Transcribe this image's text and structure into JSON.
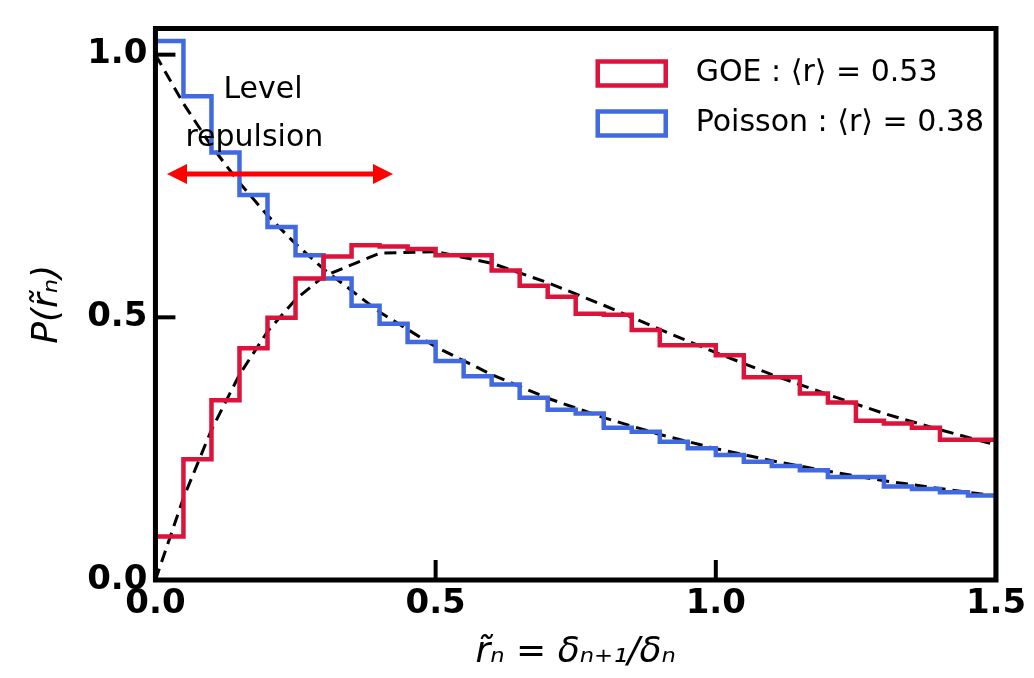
{
  "chart_data": {
    "type": "histogram",
    "xlabel": "r̃ₙ = δₙ₊₁/δₙ",
    "ylabel": "P(r̃ₙ)",
    "bins": [
      0,
      0.05,
      0.1,
      0.15,
      0.2,
      0.25,
      0.3,
      0.35,
      0.4,
      0.45,
      0.5,
      0.55,
      0.6,
      0.65,
      0.7,
      0.75,
      0.8,
      0.85,
      0.9,
      0.95,
      1.0,
      1.05,
      1.1,
      1.15,
      1.2,
      1.25,
      1.3,
      1.35,
      1.4,
      1.45,
      1.5
    ],
    "series": [
      {
        "name": "GOE : ⟨r⟩ = 0.53",
        "color": "#dc143c",
        "values": [
          0.083,
          0.23,
          0.342,
          0.441,
          0.499,
          0.574,
          0.616,
          0.637,
          0.635,
          0.63,
          0.618,
          0.618,
          0.589,
          0.56,
          0.539,
          0.507,
          0.505,
          0.476,
          0.447,
          0.447,
          0.428,
          0.386,
          0.386,
          0.355,
          0.338,
          0.303,
          0.298,
          0.29,
          0.267,
          0.267
        ]
      },
      {
        "name": "Poisson : ⟨r⟩ = 0.38",
        "color": "#4169e1",
        "values": [
          1.026,
          0.921,
          0.814,
          0.733,
          0.672,
          0.618,
          0.574,
          0.522,
          0.488,
          0.453,
          0.417,
          0.388,
          0.372,
          0.347,
          0.324,
          0.317,
          0.29,
          0.282,
          0.263,
          0.251,
          0.238,
          0.225,
          0.217,
          0.209,
          0.196,
          0.196,
          0.178,
          0.173,
          0.167,
          0.161
        ]
      },
      {
        "type": "line",
        "color": "#000000",
        "line_style": "dashed",
        "x": [
          0,
          0.05,
          0.1,
          0.15,
          0.2,
          0.25,
          0.3,
          0.4,
          0.5,
          0.6,
          0.7,
          0.8,
          0.9,
          1.0,
          1.1,
          1.2,
          1.3,
          1.4,
          1.5
        ],
        "values": [
          0,
          0.156,
          0.286,
          0.391,
          0.473,
          0.534,
          0.578,
          0.622,
          0.625,
          0.603,
          0.566,
          0.523,
          0.477,
          0.433,
          0.391,
          0.353,
          0.317,
          0.286,
          0.257
        ]
      },
      {
        "type": "line",
        "color": "#000000",
        "line_style": "dashed",
        "x": [
          0,
          0.05,
          0.1,
          0.15,
          0.2,
          0.25,
          0.3,
          0.4,
          0.5,
          0.6,
          0.7,
          0.8,
          0.9,
          1.0,
          1.1,
          1.2,
          1.3,
          1.4,
          1.5
        ],
        "values": [
          1,
          0.907,
          0.826,
          0.756,
          0.694,
          0.64,
          0.592,
          0.51,
          0.444,
          0.391,
          0.346,
          0.309,
          0.277,
          0.25,
          0.227,
          0.207,
          0.189,
          0.174,
          0.16
        ]
      }
    ],
    "annotations": [
      "Level repulsion"
    ],
    "xlim": [
      0,
      1.5
    ],
    "ylim": [
      0,
      1.05
    ],
    "xticks": [
      {
        "value": 0,
        "label": "0.0"
      },
      {
        "value": 0.5,
        "label": "0.5"
      },
      {
        "value": 1,
        "label": "1.0"
      },
      {
        "value": 1.5,
        "label": "1.5"
      }
    ],
    "yticks": [
      {
        "value": 0,
        "label": "0.0"
      },
      {
        "value": 0.5,
        "label": "0.5"
      },
      {
        "value": 1,
        "label": "1.0"
      }
    ],
    "grid": false,
    "legend": "top right"
  }
}
